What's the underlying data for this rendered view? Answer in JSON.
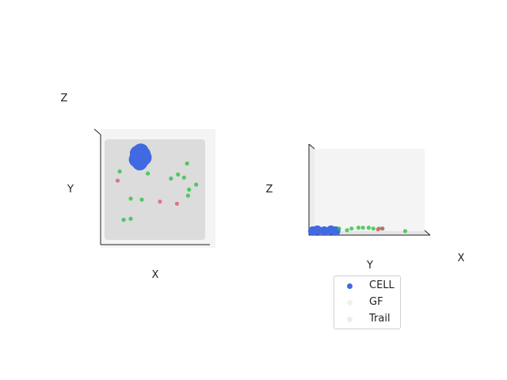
{
  "chart_data": [
    {
      "type": "scatter",
      "view": "top",
      "xlabel": "X",
      "ylabel": "Y",
      "zlabel": "Z",
      "grid": false,
      "series": [
        {
          "name": "CELL",
          "color": "#4169e1",
          "points": [
            [
              0.33,
              0.86
            ],
            [
              0.36,
              0.88
            ],
            [
              0.38,
              0.85
            ],
            [
              0.34,
              0.82
            ],
            [
              0.37,
              0.8
            ],
            [
              0.35,
              0.77
            ],
            [
              0.39,
              0.82
            ],
            [
              0.32,
              0.8
            ],
            [
              0.36,
              0.84
            ]
          ]
        },
        {
          "name": "GF",
          "color": "#22c03a",
          "points": [
            [
              0.82,
              0.76
            ],
            [
              0.15,
              0.68
            ],
            [
              0.43,
              0.66
            ],
            [
              0.79,
              0.62
            ],
            [
              0.84,
              0.5
            ],
            [
              0.83,
              0.44
            ],
            [
              0.26,
              0.41
            ],
            [
              0.37,
              0.4
            ],
            [
              0.19,
              0.2
            ],
            [
              0.26,
              0.21
            ],
            [
              0.73,
              0.65
            ],
            [
              0.66,
              0.61
            ],
            [
              0.91,
              0.55
            ]
          ]
        },
        {
          "name": "Trail",
          "color": "#e05068",
          "points": [
            [
              0.13,
              0.59
            ],
            [
              0.55,
              0.38
            ],
            [
              0.72,
              0.36
            ]
          ]
        }
      ]
    },
    {
      "type": "scatter",
      "view": "side",
      "xlabel": "X",
      "ylabel": "Y",
      "zlabel": "Z",
      "grid": false,
      "series": [
        {
          "name": "CELL",
          "color": "#4169e1",
          "points": [
            [
              0.02,
              0.02
            ],
            [
              0.06,
              0.03
            ],
            [
              0.12,
              0.02
            ],
            [
              0.18,
              0.03
            ],
            [
              0.22,
              0.02
            ]
          ]
        },
        {
          "name": "GF",
          "color": "#22c03a",
          "points": [
            [
              0.25,
              0.05
            ],
            [
              0.32,
              0.03
            ],
            [
              0.36,
              0.05
            ],
            [
              0.42,
              0.06
            ],
            [
              0.46,
              0.06
            ],
            [
              0.51,
              0.06
            ],
            [
              0.55,
              0.05
            ],
            [
              0.6,
              0.05
            ],
            [
              0.63,
              0.05
            ],
            [
              0.83,
              0.02
            ]
          ]
        },
        {
          "name": "Trail",
          "color": "#e05068",
          "points": [
            [
              0.59,
              0.04
            ],
            [
              0.63,
              0.05
            ]
          ]
        }
      ]
    }
  ],
  "legend": {
    "items": [
      {
        "label": "CELL",
        "color": "#4169e1"
      },
      {
        "label": "GF",
        "color": "#f0f0f0"
      },
      {
        "label": "Trail",
        "color": "#e6f0e6"
      }
    ]
  }
}
